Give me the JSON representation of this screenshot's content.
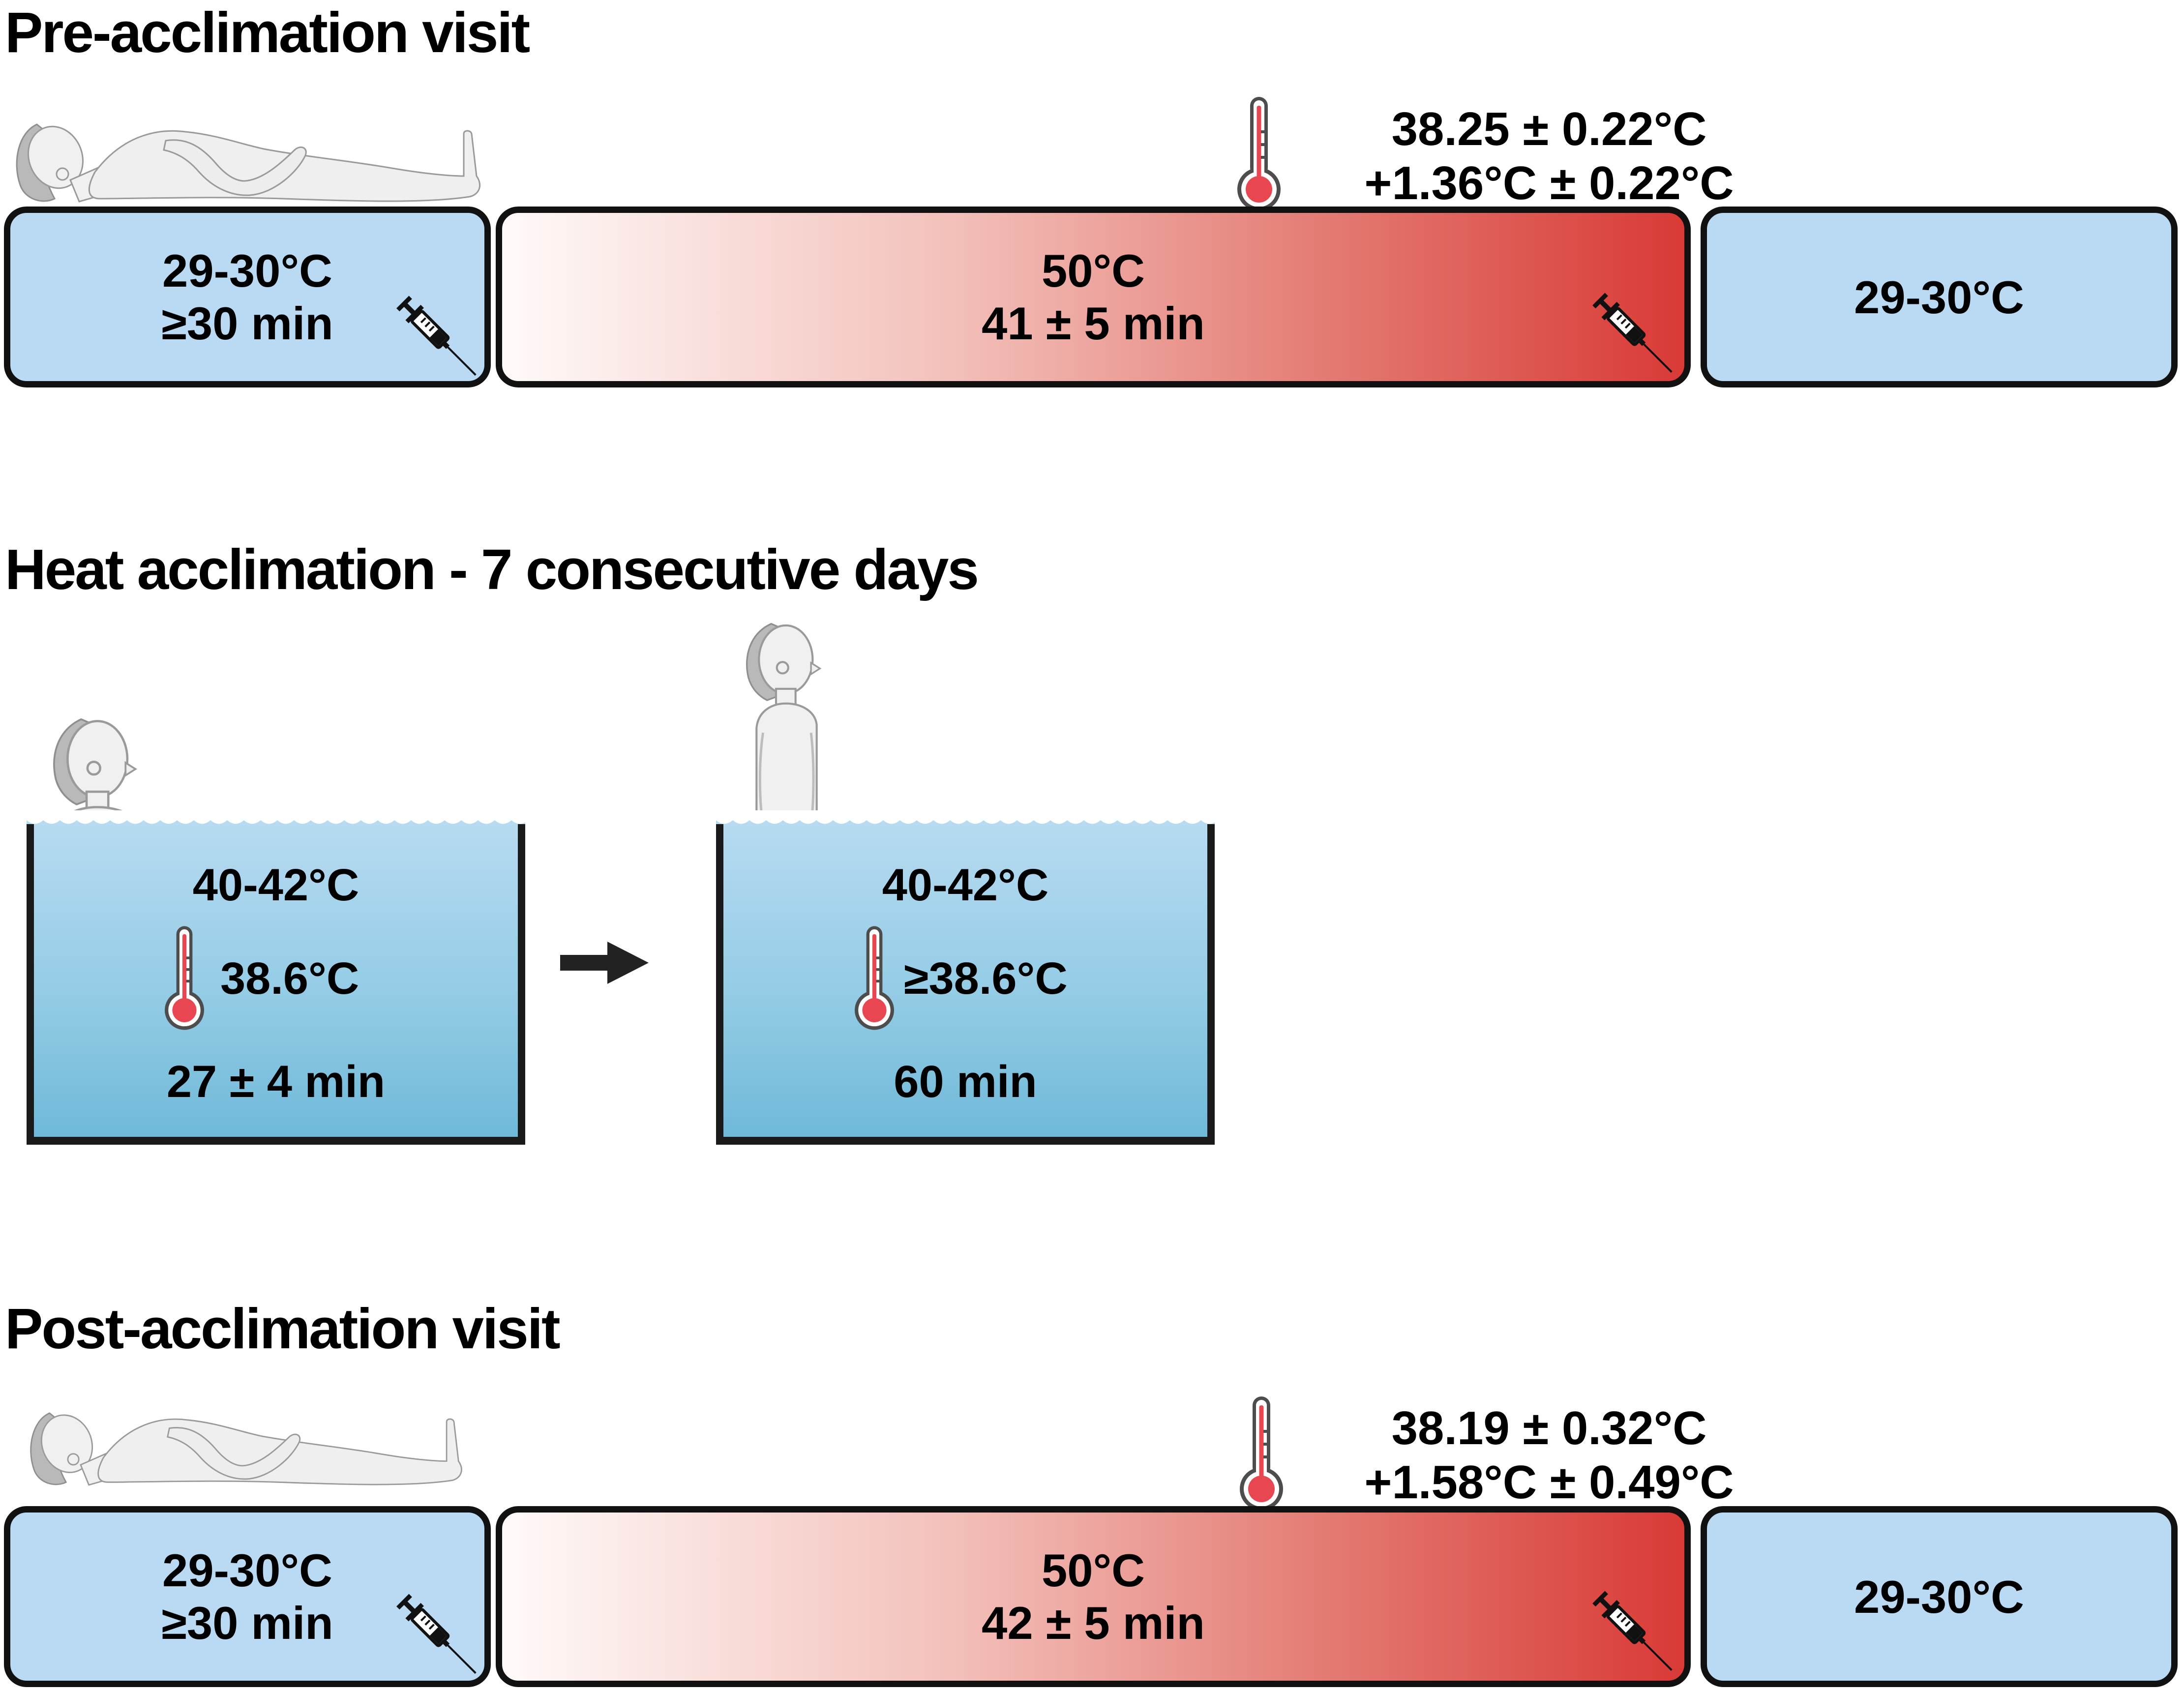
{
  "sections": {
    "pre": {
      "title": "Pre-acclimation visit",
      "timeline": {
        "baseline_start": {
          "temp": "29-30°C",
          "duration": "≥30 min"
        },
        "heating": {
          "temp": "50°C",
          "duration": "41 ± 5 min"
        },
        "baseline_end": {
          "temp": "29-30°C"
        },
        "peak_core_temp": "38.25 ± 0.22°C",
        "delta_core_temp": "+1.36°C ± 0.22°C"
      }
    },
    "acclimation": {
      "title": "Heat acclimation - 7 consecutive days",
      "tank1": {
        "water_temp": "40-42°C",
        "core_temp": "38.6°C",
        "duration": "27 ± 4 min"
      },
      "tank2": {
        "water_temp": "40-42°C",
        "core_temp": "≥38.6°C",
        "duration": "60 min"
      }
    },
    "post": {
      "title": "Post-acclimation visit",
      "timeline": {
        "baseline_start": {
          "temp": "29-30°C",
          "duration": "≥30 min"
        },
        "heating": {
          "temp": "50°C",
          "duration": "42 ± 5 min"
        },
        "baseline_end": {
          "temp": "29-30°C"
        },
        "peak_core_temp": "38.19 ± 0.32°C",
        "delta_core_temp": "+1.58°C ± 0.49°C"
      }
    }
  },
  "icons": {
    "thermometer": "thermometer-icon",
    "syringe": "syringe-icon",
    "arrow": "arrow-right-icon"
  },
  "colors": {
    "cool_box_blue": "#badaf3",
    "heat_red": "#d93a36",
    "heat_gradient_start": "#fefaf9",
    "water_top": "#b7dbf1",
    "water_bottom": "#6db8d8",
    "outline_black": "#111111",
    "thermometer_red": "#e84752",
    "thermometer_gray": "#4d4d4d"
  }
}
